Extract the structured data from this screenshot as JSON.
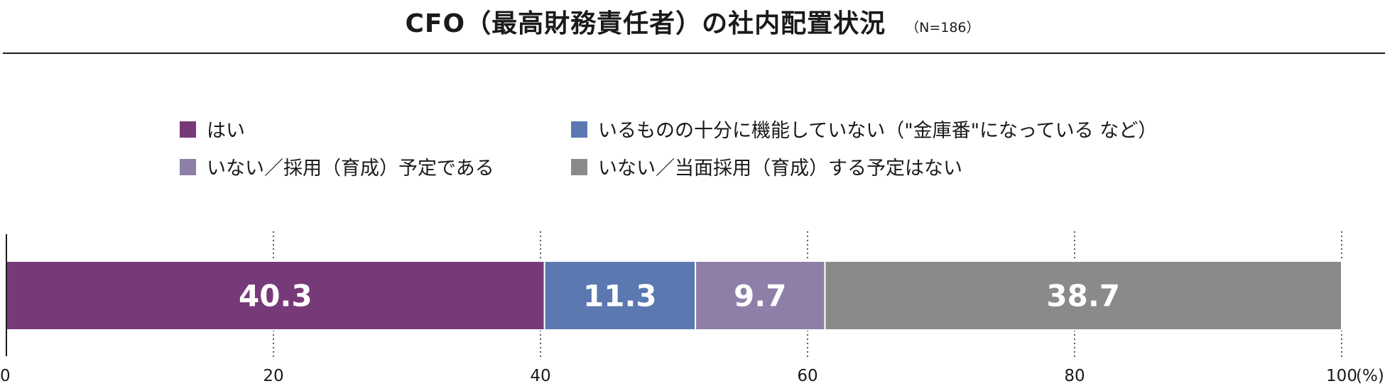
{
  "header": {
    "title": "CFO（最高財務責任者）の社内配置状況",
    "subtitle": "（N=186）"
  },
  "chart_data": {
    "type": "bar",
    "orientation": "horizontal-stacked",
    "categories": [
      ""
    ],
    "series": [
      {
        "name": "はい",
        "values": [
          40.3
        ],
        "color": "#773a78"
      },
      {
        "name": "いるものの十分に機能していない（\"金庫番\"になっている など）",
        "values": [
          11.3
        ],
        "color": "#5b79b0"
      },
      {
        "name": "いない／採用（育成）予定である",
        "values": [
          9.7
        ],
        "color": "#8d7fa8"
      },
      {
        "name": "いない／当面採用（育成）する予定はない",
        "values": [
          38.7
        ],
        "color": "#8a8a8a"
      }
    ],
    "xlim": [
      0,
      100
    ],
    "xticks": [
      0,
      20,
      40,
      60,
      80,
      100
    ],
    "xtick_labels": [
      "0",
      "20",
      "40",
      "60",
      "80",
      "100"
    ],
    "x_unit": "(%)",
    "grid": "vertical dotted",
    "legend_position": "top"
  }
}
